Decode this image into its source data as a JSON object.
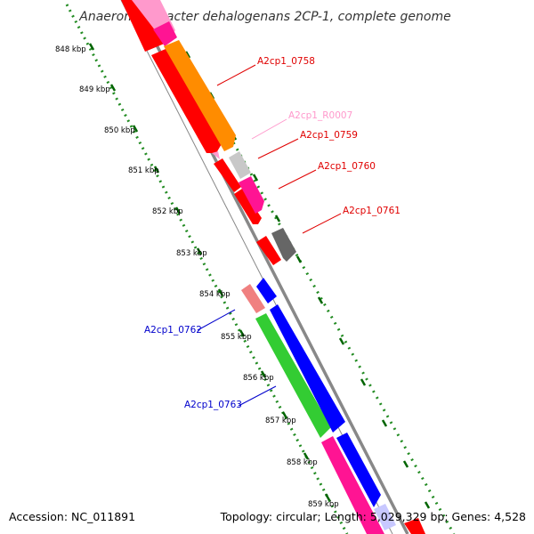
{
  "title": "Anaeromyxobacter dehalogenans 2CP-1, complete genome",
  "footer": {
    "accession": "Accession: NC_011891",
    "topology": "Topology: circular; Length: 5,029,329 bp; Genes: 4,528"
  },
  "ruler": {
    "labels": [
      "848 kbp",
      "849 kbp",
      "850 kbp",
      "851 kbp",
      "852 kbp",
      "853 kbp",
      "854 kbp",
      "855 kbp",
      "856 kbp",
      "857 kbp",
      "858 kbp",
      "859 kbp"
    ]
  },
  "gene_labels": [
    {
      "name": "A2cp1_0758",
      "color": "#e00000"
    },
    {
      "name": "A2cp1_R0007",
      "color": "#ff99cc"
    },
    {
      "name": "A2cp1_0759",
      "color": "#e00000"
    },
    {
      "name": "A2cp1_0760",
      "color": "#e00000"
    },
    {
      "name": "A2cp1_0761",
      "color": "#e00000"
    },
    {
      "name": "A2cp1_0762",
      "color": "#0000cc"
    },
    {
      "name": "A2cp1_0763",
      "color": "#0000cc"
    }
  ],
  "colors": {
    "cds_red": "#ff0000",
    "orange": "#ff8c00",
    "pink": "#ff1493",
    "light_pink": "#ff99cc",
    "light_grey": "#c8c8c8",
    "dark_grey": "#666666",
    "salmon": "#f08080",
    "blue": "#0000ff",
    "green": "#33cc33",
    "backbone": "#888888",
    "tick_green": "#228b22"
  }
}
